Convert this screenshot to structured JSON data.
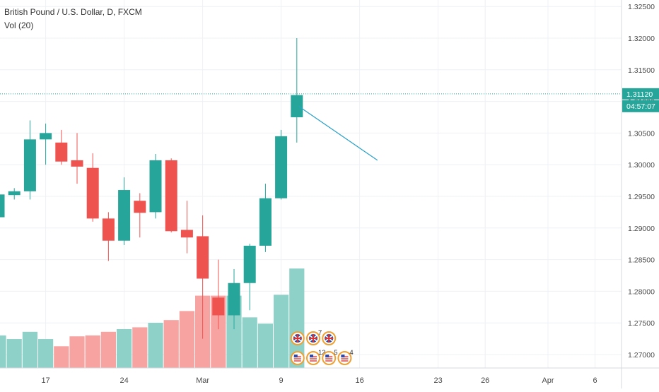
{
  "legend": {
    "symbol_line": "British Pound / U.S. Dollar, D, FXCM",
    "volume_line": "Vol (20)"
  },
  "colors": {
    "up": "#26a69a",
    "down": "#ef5350",
    "vol_up": "#8ed1c9",
    "vol_down": "#f7a3a1",
    "grid": "#eef0f4",
    "axis_text": "#4a4a4a",
    "price_line": "#26a69a",
    "trend_line": "#2aa0c8",
    "countdown_bg": "#26a69a"
  },
  "price_badge": {
    "price": "1.31120",
    "countdown": "04:57:07"
  },
  "chart_data": {
    "type": "candlestick",
    "title": "British Pound / U.S. Dollar, D, FXCM",
    "y_axis": {
      "range": [
        1.2665,
        1.3256
      ],
      "ticks": [
        "1.32500",
        "1.32000",
        "1.31500",
        "1.31000",
        "1.30500",
        "1.30000",
        "1.29500",
        "1.29000",
        "1.28500",
        "1.28000",
        "1.27500",
        "1.27000"
      ]
    },
    "x_axis": {
      "ticks": [
        {
          "label": "17",
          "index": 3
        },
        {
          "label": "24",
          "index": 8
        },
        {
          "label": "Mar",
          "index": 13
        },
        {
          "label": "9",
          "index": 18
        },
        {
          "label": "16",
          "index": 23
        },
        {
          "label": "23",
          "index": 28
        },
        {
          "label": "26",
          "index": 31
        },
        {
          "label": "Apr",
          "index": 35
        },
        {
          "label": "6",
          "index": 38
        }
      ]
    },
    "last_price": 1.3112,
    "grid": true,
    "candles": [
      {
        "open": 1.2917,
        "high": 1.2955,
        "low": 1.2915,
        "close": 1.2953,
        "volume": 0.36
      },
      {
        "open": 1.2952,
        "high": 1.2963,
        "low": 1.2945,
        "close": 1.2958,
        "volume": 0.32
      },
      {
        "open": 1.2958,
        "high": 1.307,
        "low": 1.2945,
        "close": 1.304,
        "volume": 0.4
      },
      {
        "open": 1.304,
        "high": 1.3065,
        "low": 1.3,
        "close": 1.305,
        "volume": 0.32
      },
      {
        "open": 1.3035,
        "high": 1.3055,
        "low": 1.3,
        "close": 1.3005,
        "volume": 0.24
      },
      {
        "open": 1.3007,
        "high": 1.305,
        "low": 1.297,
        "close": 1.2997,
        "volume": 0.35
      },
      {
        "open": 1.2995,
        "high": 1.3018,
        "low": 1.291,
        "close": 1.2915,
        "volume": 0.36
      },
      {
        "open": 1.2915,
        "high": 1.2925,
        "low": 1.2848,
        "close": 1.288,
        "volume": 0.4
      },
      {
        "open": 1.288,
        "high": 1.298,
        "low": 1.2873,
        "close": 1.296,
        "volume": 0.43
      },
      {
        "open": 1.2943,
        "high": 1.2955,
        "low": 1.2885,
        "close": 1.2924,
        "volume": 0.45
      },
      {
        "open": 1.2925,
        "high": 1.3017,
        "low": 1.2915,
        "close": 1.3007,
        "volume": 0.5
      },
      {
        "open": 1.3007,
        "high": 1.301,
        "low": 1.2893,
        "close": 1.2895,
        "volume": 0.53
      },
      {
        "open": 1.2897,
        "high": 1.2943,
        "low": 1.286,
        "close": 1.2885,
        "volume": 0.63
      },
      {
        "open": 1.2887,
        "high": 1.292,
        "low": 1.2725,
        "close": 1.282,
        "volume": 0.8
      },
      {
        "open": 1.279,
        "high": 1.285,
        "low": 1.274,
        "close": 1.2762,
        "volume": 0.8
      },
      {
        "open": 1.2762,
        "high": 1.2835,
        "low": 1.274,
        "close": 1.2813,
        "volume": 0.8
      },
      {
        "open": 1.2813,
        "high": 1.2875,
        "low": 1.277,
        "close": 1.2872,
        "volume": 0.56
      },
      {
        "open": 1.2872,
        "high": 1.297,
        "low": 1.2862,
        "close": 1.2947,
        "volume": 0.49
      },
      {
        "open": 1.2947,
        "high": 1.3055,
        "low": 1.2945,
        "close": 1.3045,
        "volume": 0.81
      },
      {
        "open": 1.3075,
        "high": 1.32,
        "low": 1.3035,
        "close": 1.311,
        "volume": 1.1
      }
    ],
    "trend_line": {
      "from": {
        "index": 19,
        "price": 1.3092
      },
      "to": {
        "index": 24,
        "price": 1.3007
      }
    },
    "event_markers": [
      {
        "country": "uk",
        "row": 1,
        "index": 19,
        "count": ""
      },
      {
        "country": "uk",
        "row": 1,
        "index": 20,
        "count": "7"
      },
      {
        "country": "uk",
        "row": 1,
        "index": 21,
        "count": ""
      },
      {
        "country": "us",
        "row": 2,
        "index": 19,
        "count": ""
      },
      {
        "country": "us",
        "row": 2,
        "index": 20,
        "count": "12"
      },
      {
        "country": "us",
        "row": 2,
        "index": 21,
        "count": "5"
      },
      {
        "country": "us",
        "row": 2,
        "index": 22,
        "count": "4"
      }
    ]
  }
}
